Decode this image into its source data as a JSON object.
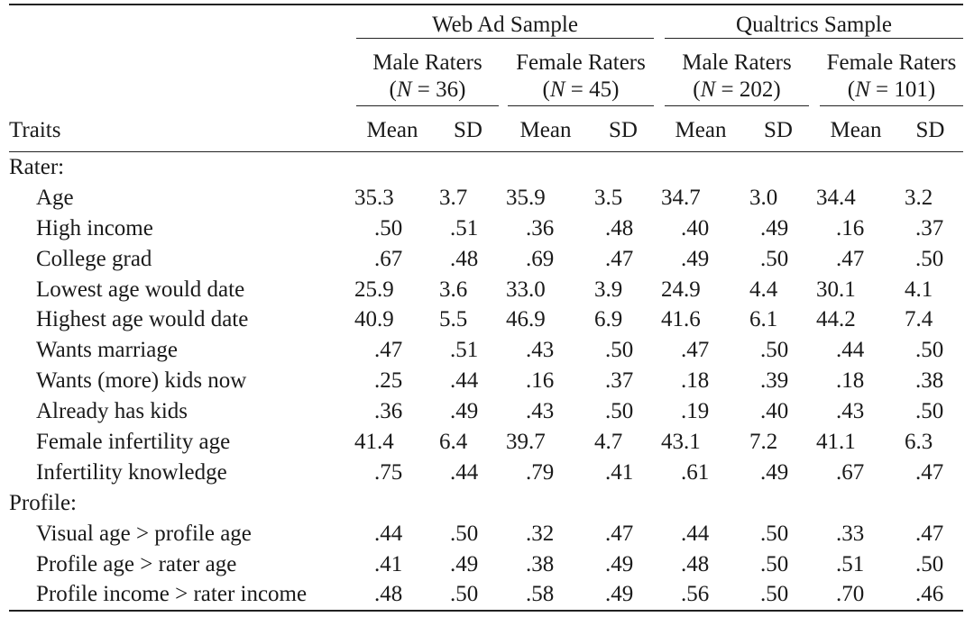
{
  "table": {
    "group_headers": [
      "Web Ad Sample",
      "Qualtrics Sample"
    ],
    "subgroups": [
      {
        "name": "Male Raters",
        "n_prefix": "(",
        "n_var": "N",
        "n_eq": " = 36)"
      },
      {
        "name": "Female Raters",
        "n_prefix": "(",
        "n_var": "N",
        "n_eq": " = 45)"
      },
      {
        "name": "Male Raters",
        "n_prefix": "(",
        "n_var": "N",
        "n_eq": " = 202)"
      },
      {
        "name": "Female Raters",
        "n_prefix": "(",
        "n_var": "N",
        "n_eq": " = 101)"
      }
    ],
    "col_headers": {
      "traits": "Traits",
      "mean": "Mean",
      "sd": "SD"
    },
    "rows": [
      {
        "section": "Rater:"
      },
      {
        "label": "Age",
        "values": [
          "35.3",
          "3.7",
          "35.9",
          "3.5",
          "34.7",
          "3.0",
          "34.4",
          "3.2"
        ]
      },
      {
        "label": "High income",
        "values": [
          ".50",
          ".51",
          ".36",
          ".48",
          ".40",
          ".49",
          ".16",
          ".37"
        ]
      },
      {
        "label": "College grad",
        "values": [
          ".67",
          ".48",
          ".69",
          ".47",
          ".49",
          ".50",
          ".47",
          ".50"
        ]
      },
      {
        "label": "Lowest age would date",
        "values": [
          "25.9",
          "3.6",
          "33.0",
          "3.9",
          "24.9",
          "4.4",
          "30.1",
          "4.1"
        ]
      },
      {
        "label": "Highest age would date",
        "values": [
          "40.9",
          "5.5",
          "46.9",
          "6.9",
          "41.6",
          "6.1",
          "44.2",
          "7.4"
        ]
      },
      {
        "label": "Wants marriage",
        "values": [
          ".47",
          ".51",
          ".43",
          ".50",
          ".47",
          ".50",
          ".44",
          ".50"
        ]
      },
      {
        "label": "Wants (more) kids now",
        "values": [
          ".25",
          ".44",
          ".16",
          ".37",
          ".18",
          ".39",
          ".18",
          ".38"
        ]
      },
      {
        "label": "Already has kids",
        "values": [
          ".36",
          ".49",
          ".43",
          ".50",
          ".19",
          ".40",
          ".43",
          ".50"
        ]
      },
      {
        "label": "Female infertility age",
        "values": [
          "41.4",
          "6.4",
          "39.7",
          "4.7",
          "43.1",
          "7.2",
          "41.1",
          "6.3"
        ]
      },
      {
        "label": "Infertility knowledge",
        "values": [
          ".75",
          ".44",
          ".79",
          ".41",
          ".61",
          ".49",
          ".67",
          ".47"
        ]
      },
      {
        "section": "Profile:"
      },
      {
        "label": "Visual age > profile age",
        "values": [
          ".44",
          ".50",
          ".32",
          ".47",
          ".44",
          ".50",
          ".33",
          ".47"
        ]
      },
      {
        "label": "Profile age > rater age",
        "values": [
          ".41",
          ".49",
          ".38",
          ".49",
          ".48",
          ".50",
          ".51",
          ".50"
        ]
      },
      {
        "label": "Profile income > rater income",
        "values": [
          ".48",
          ".50",
          ".58",
          ".49",
          ".56",
          ".50",
          ".70",
          ".46"
        ]
      }
    ]
  }
}
